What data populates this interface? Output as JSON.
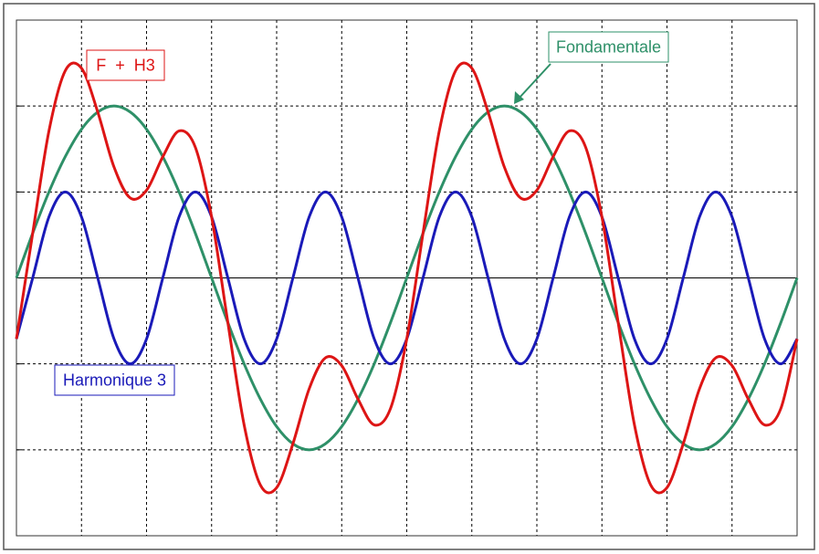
{
  "chart_data": {
    "type": "line",
    "x": [
      0,
      0.25,
      0.5,
      0.75,
      1,
      1.25,
      1.5,
      1.75,
      2,
      2.25,
      2.5,
      2.75,
      3,
      3.25,
      3.5,
      3.75,
      4,
      4.25,
      4.5,
      4.75,
      5,
      5.25,
      5.5,
      5.75,
      6,
      6.25,
      6.5,
      6.75,
      7,
      7.25,
      7.5,
      7.75,
      8,
      8.25,
      8.5,
      8.75,
      9,
      9.25,
      9.5,
      9.75,
      10,
      10.25,
      10.5,
      10.75,
      11,
      11.25,
      11.5,
      11.75,
      12
    ],
    "series": [
      {
        "name": "Fondamentale",
        "color": "#2e9068",
        "values": [
          0,
          0.52,
          1,
          1.41,
          1.73,
          1.93,
          2,
          1.93,
          1.73,
          1.41,
          1,
          0.52,
          0,
          -0.52,
          -1,
          -1.41,
          -1.73,
          -1.93,
          -2,
          -1.93,
          -1.73,
          -1.41,
          -1,
          -0.52,
          0,
          0.52,
          1,
          1.41,
          1.73,
          1.93,
          2,
          1.93,
          1.73,
          1.41,
          1,
          0.52,
          0,
          -0.52,
          -1,
          -1.41,
          -1.73,
          -1.93,
          -2,
          -1.93,
          -1.73,
          -1.41,
          -1,
          -0.52,
          0
        ]
      },
      {
        "name": "Harmonique 3",
        "color": "#1a1ab8",
        "values": [
          -0.71,
          0,
          0.71,
          1,
          0.71,
          0,
          -0.71,
          -1,
          -0.71,
          0,
          0.71,
          1,
          0.71,
          0,
          -0.71,
          -1,
          -0.71,
          0,
          0.71,
          1,
          0.71,
          0,
          -0.71,
          -1,
          -0.71,
          0,
          0.71,
          1,
          0.71,
          0,
          -0.71,
          -1,
          -0.71,
          0,
          0.71,
          1,
          0.71,
          0,
          -0.71,
          -1,
          -0.71,
          0,
          0.71,
          1,
          0.71,
          0,
          -0.71,
          -1,
          -0.71
        ]
      },
      {
        "name": "F  +  H3",
        "color": "#dd1515",
        "values": [
          -0.71,
          0.52,
          1.71,
          2.41,
          2.44,
          1.93,
          1.29,
          0.93,
          1.02,
          1.41,
          1.71,
          1.52,
          0.71,
          -0.52,
          -1.71,
          -2.41,
          -2.44,
          -1.93,
          -1.29,
          -0.93,
          -1.02,
          -1.41,
          -1.71,
          -1.52,
          -0.71,
          0.52,
          1.71,
          2.41,
          2.44,
          1.93,
          1.29,
          0.93,
          1.02,
          1.41,
          1.71,
          1.52,
          0.71,
          -0.52,
          -1.71,
          -2.41,
          -2.44,
          -1.93,
          -1.29,
          -0.93,
          -1.02,
          -1.41,
          -1.71,
          -1.52,
          -0.71
        ]
      }
    ],
    "xlim": [
      0,
      12
    ],
    "ylim": [
      -3,
      3
    ],
    "xticks": [
      1,
      2,
      3,
      4,
      5,
      6,
      7,
      8,
      9,
      10,
      11
    ],
    "yticks": [
      -2,
      -1,
      0,
      1,
      2
    ],
    "grid": true
  }
}
